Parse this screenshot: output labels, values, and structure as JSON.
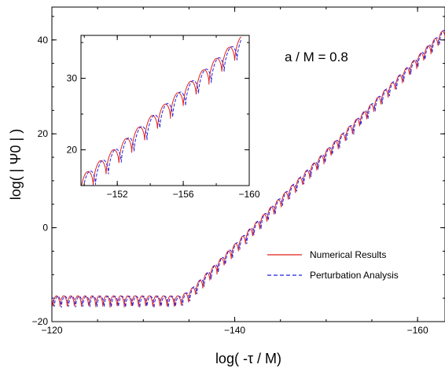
{
  "chart_data": [
    {
      "type": "line",
      "xlabel": "log( -τ / M)",
      "ylabel": "log( | Ψ0 | )",
      "annotation": "a / M = 0.8",
      "xlim": [
        -120,
        -163
      ],
      "ylim": [
        -20,
        47
      ],
      "xticks": [
        -120,
        -140,
        -160
      ],
      "xtick_labels": [
        "−120",
        "−140",
        "−160"
      ],
      "yticks": [
        -20,
        0,
        20,
        40
      ],
      "ytick_labels": [
        "−20",
        "0",
        "20",
        "40"
      ],
      "legend_position": "lower-right",
      "grid": false,
      "series": [
        {
          "name": "Numerical Results",
          "color": "#e0201b",
          "style": "solid",
          "x": [
            -120,
            -125,
            -130,
            -134,
            -135,
            -140,
            -145,
            -150,
            -155,
            -160,
            -163
          ],
          "y": [
            -14.5,
            -14.5,
            -14.5,
            -14.5,
            -13.5,
            -3.5,
            6.5,
            16.5,
            26.5,
            36.5,
            42.5
          ]
        },
        {
          "name": "Perturbation Analysis",
          "color": "#2020e0",
          "style": "dashed",
          "x": [
            -120,
            -125,
            -130,
            -134,
            -135,
            -140,
            -145,
            -150,
            -155,
            -160,
            -163
          ],
          "y": [
            -14.6,
            -14.6,
            -14.6,
            -14.6,
            -13.6,
            -3.6,
            6.4,
            16.4,
            26.4,
            36.4,
            42.4
          ]
        }
      ]
    },
    {
      "type": "line",
      "role": "inset",
      "xlim": [
        -149.8,
        -160
      ],
      "ylim": [
        15,
        36
      ],
      "xticks": [
        -152,
        -156,
        -160
      ],
      "xtick_labels": [
        "−152",
        "−156",
        "−160"
      ],
      "yticks": [
        20,
        30
      ],
      "ytick_labels": [
        "20",
        "30"
      ],
      "series": [
        {
          "color": "#e0201b",
          "style": "solid",
          "x": [
            -149.8,
            -152,
            -154,
            -156,
            -158,
            -159.5
          ],
          "y": [
            16.2,
            20.5,
            24.6,
            28.7,
            32.8,
            35.8
          ]
        },
        {
          "color": "#2020e0",
          "style": "dashed",
          "x": [
            -149.8,
            -152,
            -154,
            -156,
            -158,
            -159.5
          ],
          "y": [
            16.0,
            20.3,
            24.4,
            28.5,
            32.6,
            35.6
          ]
        }
      ]
    }
  ]
}
